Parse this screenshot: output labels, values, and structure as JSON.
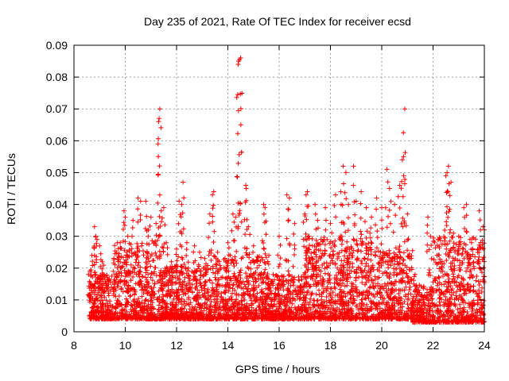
{
  "chart_data": {
    "type": "scatter",
    "title": "Day 235 of 2021, Rate Of TEC Index for receiver ecsd",
    "xlabel": "GPS time / hours",
    "ylabel": "ROTI / TECUs",
    "xlim": [
      8,
      24
    ],
    "ylim": [
      0,
      0.09
    ],
    "x_ticks": [
      "8",
      "10",
      "12",
      "14",
      "16",
      "18",
      "20",
      "22",
      "24"
    ],
    "y_ticks": [
      "0",
      "0.01",
      "0.02",
      "0.03",
      "0.04",
      "0.05",
      "0.06",
      "0.07",
      "0.08",
      "0.09"
    ],
    "grid": true,
    "marker": "+",
    "color": "#ff0000",
    "series": [
      {
        "points": [
          [
            8.6,
            0.011
          ],
          [
            8.62,
            0.019
          ],
          [
            8.7,
            0.024
          ],
          [
            8.8,
            0.033
          ],
          [
            8.85,
            0.03
          ],
          [
            8.9,
            0.029
          ],
          [
            9.0,
            0.027
          ],
          [
            9.1,
            0.022
          ],
          [
            9.3,
            0.017
          ],
          [
            9.6,
            0.018
          ],
          [
            9.8,
            0.028
          ],
          [
            9.95,
            0.038
          ],
          [
            10.0,
            0.036
          ],
          [
            10.1,
            0.03
          ],
          [
            10.3,
            0.035
          ],
          [
            10.5,
            0.042
          ],
          [
            10.6,
            0.041
          ],
          [
            10.8,
            0.041
          ],
          [
            10.9,
            0.032
          ],
          [
            11.0,
            0.036
          ],
          [
            11.2,
            0.034
          ],
          [
            11.3,
            0.066
          ],
          [
            11.32,
            0.067
          ],
          [
            11.35,
            0.07
          ],
          [
            11.4,
            0.038
          ],
          [
            11.5,
            0.039
          ],
          [
            11.6,
            0.028
          ],
          [
            11.8,
            0.022
          ],
          [
            12.0,
            0.026
          ],
          [
            12.1,
            0.041
          ],
          [
            12.2,
            0.04
          ],
          [
            12.25,
            0.047
          ],
          [
            12.4,
            0.028
          ],
          [
            12.7,
            0.027
          ],
          [
            12.9,
            0.025
          ],
          [
            13.1,
            0.023
          ],
          [
            13.3,
            0.037
          ],
          [
            13.4,
            0.043
          ],
          [
            13.45,
            0.044
          ],
          [
            13.6,
            0.025
          ],
          [
            14.0,
            0.028
          ],
          [
            14.2,
            0.037
          ],
          [
            14.3,
            0.036
          ],
          [
            14.4,
            0.084
          ],
          [
            14.42,
            0.085
          ],
          [
            14.45,
            0.0855
          ],
          [
            14.5,
            0.086
          ],
          [
            14.7,
            0.046
          ],
          [
            14.72,
            0.045
          ],
          [
            14.8,
            0.033
          ],
          [
            15.0,
            0.027
          ],
          [
            15.4,
            0.04
          ],
          [
            15.45,
            0.039
          ],
          [
            15.6,
            0.024
          ],
          [
            16.0,
            0.03
          ],
          [
            16.3,
            0.043
          ],
          [
            16.4,
            0.042
          ],
          [
            16.6,
            0.034
          ],
          [
            17.0,
            0.037
          ],
          [
            17.05,
            0.043
          ],
          [
            17.1,
            0.044
          ],
          [
            17.3,
            0.027
          ],
          [
            17.4,
            0.04
          ],
          [
            17.5,
            0.035
          ],
          [
            17.8,
            0.039
          ],
          [
            18.0,
            0.034
          ],
          [
            18.2,
            0.043
          ],
          [
            18.4,
            0.044
          ],
          [
            18.5,
            0.052
          ],
          [
            18.6,
            0.05
          ],
          [
            18.7,
            0.04
          ],
          [
            18.9,
            0.052
          ],
          [
            19.0,
            0.041
          ],
          [
            19.2,
            0.044
          ],
          [
            19.4,
            0.039
          ],
          [
            19.6,
            0.036
          ],
          [
            19.8,
            0.042
          ],
          [
            20.0,
            0.039
          ],
          [
            20.2,
            0.051
          ],
          [
            20.3,
            0.045
          ],
          [
            20.5,
            0.04
          ],
          [
            20.7,
            0.046
          ],
          [
            20.8,
            0.054
          ],
          [
            20.85,
            0.055
          ],
          [
            20.9,
            0.07
          ],
          [
            21.0,
            0.037
          ],
          [
            21.3,
            0.018
          ],
          [
            21.8,
            0.036
          ],
          [
            21.9,
            0.03
          ],
          [
            22.2,
            0.029
          ],
          [
            22.5,
            0.049
          ],
          [
            22.55,
            0.05
          ],
          [
            22.6,
            0.052
          ],
          [
            22.7,
            0.047
          ],
          [
            22.8,
            0.031
          ],
          [
            23.0,
            0.03
          ],
          [
            23.2,
            0.039
          ],
          [
            23.3,
            0.04
          ],
          [
            23.5,
            0.028
          ],
          [
            23.8,
            0.038
          ],
          [
            23.95,
            0.033
          ],
          [
            24.0,
            0.032
          ]
        ]
      }
    ],
    "density": [
      {
        "x": [
          8.6,
          9.5
        ],
        "y": [
          0.004,
          0.018
        ]
      },
      {
        "x": [
          9.5,
          11.5
        ],
        "y": [
          0.004,
          0.028
        ]
      },
      {
        "x": [
          11.5,
          13.5
        ],
        "y": [
          0.004,
          0.021
        ]
      },
      {
        "x": [
          13.5,
          15.5
        ],
        "y": [
          0.004,
          0.024
        ]
      },
      {
        "x": [
          15.5,
          17.0
        ],
        "y": [
          0.004,
          0.018
        ]
      },
      {
        "x": [
          17.0,
          20.0
        ],
        "y": [
          0.004,
          0.03
        ]
      },
      {
        "x": [
          20.0,
          21.2
        ],
        "y": [
          0.004,
          0.026
        ]
      },
      {
        "x": [
          21.2,
          22.0
        ],
        "y": [
          0.003,
          0.015
        ]
      },
      {
        "x": [
          22.0,
          24.0
        ],
        "y": [
          0.003,
          0.03
        ]
      }
    ]
  }
}
